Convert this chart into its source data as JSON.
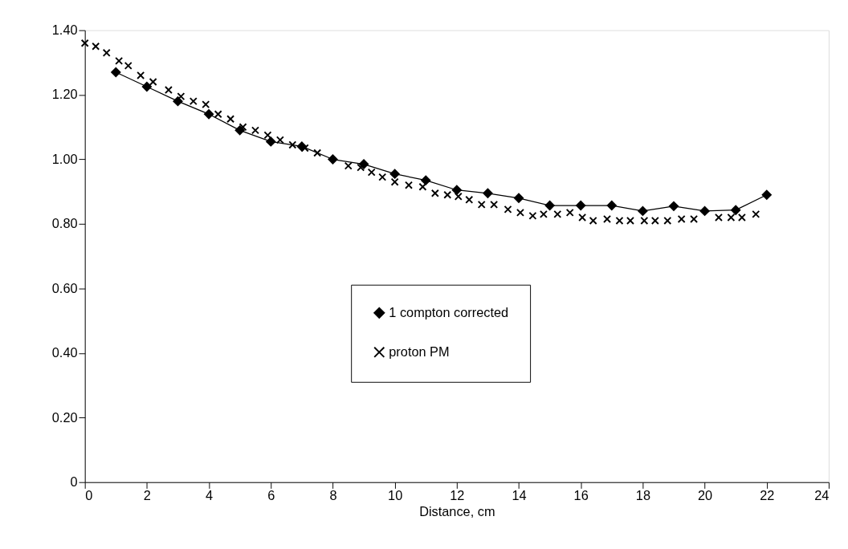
{
  "chart_data": {
    "type": "line",
    "xlabel": "Distance, cm",
    "xlim": [
      0,
      24
    ],
    "xticks": [
      0,
      2,
      4,
      6,
      8,
      10,
      12,
      14,
      16,
      18,
      20,
      22,
      24
    ],
    "ylim": [
      0,
      1.4
    ],
    "yticks": [
      {
        "value": 0,
        "label": "0"
      },
      {
        "value": 0.2,
        "label": "0.20"
      },
      {
        "value": 0.4,
        "label": "0.40"
      },
      {
        "value": 0.6,
        "label": "0.60"
      },
      {
        "value": 0.8,
        "label": "0.80"
      },
      {
        "value": 1.0,
        "label": "1.00"
      },
      {
        "value": 1.2,
        "label": "1.20"
      },
      {
        "value": 1.4,
        "label": "1.40"
      }
    ],
    "grid": false,
    "legend": "bottom",
    "series": [
      {
        "name": "1 compton corrected",
        "marker": "diamond",
        "color": "#000000",
        "x": [
          1,
          2,
          3,
          4,
          5,
          6,
          7,
          8,
          9,
          10,
          11,
          12,
          13,
          14,
          15,
          16,
          17,
          18,
          19,
          20,
          21,
          22
        ],
        "values": [
          1.27,
          1.225,
          1.18,
          1.14,
          1.09,
          1.055,
          1.04,
          1.0,
          0.985,
          0.955,
          0.935,
          0.905,
          0.895,
          0.88,
          0.857,
          0.857,
          0.857,
          0.84,
          0.855,
          0.84,
          0.843,
          0.89
        ]
      },
      {
        "name": "proton PM",
        "type": "scatter",
        "marker": "cross",
        "color": "#000000",
        "x": [
          0,
          0.35,
          0.7,
          1.1,
          1.4,
          1.8,
          2.2,
          2.7,
          3.1,
          3.5,
          3.9,
          4.3,
          4.7,
          5.1,
          5.5,
          5.9,
          6.3,
          6.7,
          7.1,
          7.5,
          8.5,
          8.9,
          9.25,
          9.6,
          10.0,
          10.45,
          10.9,
          11.3,
          11.7,
          12.05,
          12.4,
          12.8,
          13.2,
          13.65,
          14.05,
          14.45,
          14.8,
          15.25,
          15.65,
          16.05,
          16.4,
          16.85,
          17.25,
          17.6,
          18.05,
          18.4,
          18.8,
          19.25,
          19.65,
          20.45,
          20.85,
          21.2,
          21.65
        ],
        "values": [
          1.36,
          1.35,
          1.33,
          1.305,
          1.29,
          1.26,
          1.24,
          1.215,
          1.195,
          1.18,
          1.17,
          1.14,
          1.125,
          1.1,
          1.09,
          1.075,
          1.06,
          1.045,
          1.035,
          1.02,
          0.98,
          0.975,
          0.96,
          0.945,
          0.93,
          0.92,
          0.915,
          0.895,
          0.89,
          0.885,
          0.875,
          0.86,
          0.86,
          0.845,
          0.835,
          0.825,
          0.83,
          0.83,
          0.835,
          0.82,
          0.81,
          0.815,
          0.81,
          0.81,
          0.81,
          0.81,
          0.81,
          0.815,
          0.815,
          0.82,
          0.82,
          0.82,
          0.83
        ]
      }
    ]
  }
}
